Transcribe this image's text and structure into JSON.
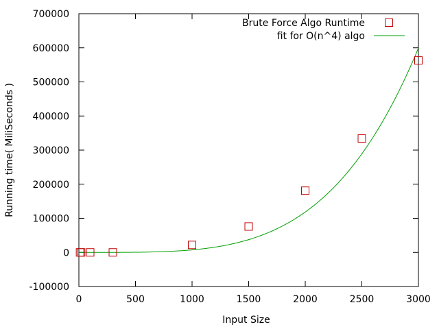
{
  "chart_data": {
    "type": "scatter",
    "title": "",
    "xlabel": "Input Size",
    "ylabel": "Running time( MiliSeconds )",
    "xlim": [
      0,
      3000
    ],
    "ylim": [
      -100000,
      700000
    ],
    "x_ticks": [
      0,
      500,
      1000,
      1500,
      2000,
      2500,
      3000
    ],
    "y_ticks": [
      -100000,
      0,
      100000,
      200000,
      300000,
      400000,
      500000,
      600000,
      700000
    ],
    "grid": false,
    "legend_position": "top-right",
    "series": [
      {
        "name": "Brute Force Algo Runtime",
        "kind": "points",
        "marker": "open-square",
        "color": "#c00000",
        "points": [
          {
            "x": 10,
            "y": 0
          },
          {
            "x": 20,
            "y": 0
          },
          {
            "x": 100,
            "y": 0
          },
          {
            "x": 300,
            "y": 0
          },
          {
            "x": 1000,
            "y": 22000
          },
          {
            "x": 1500,
            "y": 76000
          },
          {
            "x": 2000,
            "y": 181000
          },
          {
            "x": 2500,
            "y": 334000
          },
          {
            "x": 3000,
            "y": 563000
          }
        ]
      },
      {
        "name": "fit for O(n^4) algo",
        "kind": "line",
        "color": "#00a000",
        "function": "a*x^4",
        "coefficient": 7.4e-09
      }
    ]
  }
}
